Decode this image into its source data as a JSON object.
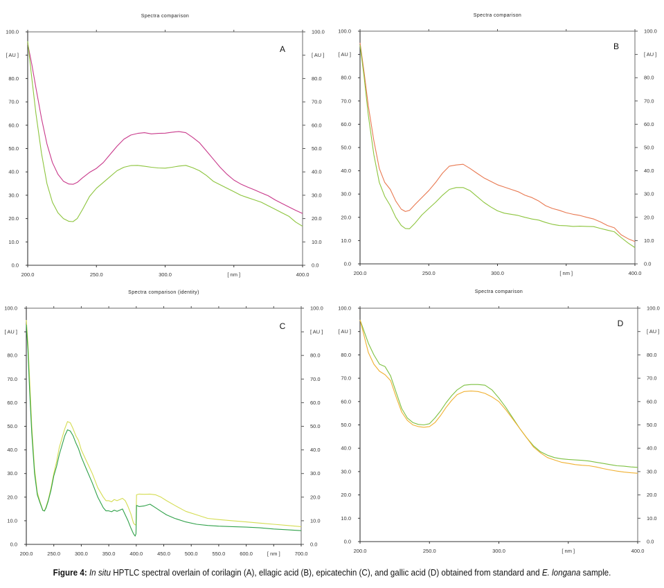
{
  "figure": {
    "caption": {
      "label": "Figure 4:",
      "italic_1": "In situ",
      "text_1": " HPTLC spectral overlain of corilagin (A), ellagic acid (B), epicatechin (C), and gallic acid (D) obtained from standard and ",
      "italic_2": "E. longana",
      "text_2": " sample."
    }
  },
  "chart_data": [
    {
      "id": "A",
      "type": "line",
      "panel_letter": "A",
      "title": "Spectra comparison",
      "xlabel": "[ nm ]",
      "ylabel": "[ AU ]",
      "ylabel_right": "[ AU ]",
      "xlim": [
        200,
        400
      ],
      "ylim": [
        0,
        100
      ],
      "x_ticks": [
        200,
        250,
        300,
        350,
        400
      ],
      "x_tick_labels": [
        "200.0",
        "250.0",
        "300.0",
        "[ nm ]",
        "400.0"
      ],
      "y_ticks": [
        0,
        10,
        20,
        30,
        40,
        50,
        60,
        70,
        80,
        90,
        100
      ],
      "y_tick_labels": [
        "0.0",
        "10.0",
        "20.0",
        "30.0",
        "40.0",
        "50.0",
        "60.0",
        "70.0",
        "80.0",
        "[ AU ]",
        "100.0"
      ],
      "grid": false,
      "series": [
        {
          "name": "standard",
          "color": "#c8388a",
          "x": [
            200,
            203,
            206,
            210,
            214,
            218,
            222,
            226,
            230,
            233,
            236,
            240,
            245,
            250,
            255,
            260,
            265,
            270,
            275,
            280,
            285,
            290,
            295,
            300,
            305,
            310,
            315,
            320,
            325,
            330,
            335,
            340,
            345,
            350,
            355,
            360,
            365,
            370,
            375,
            380,
            385,
            390,
            395,
            400
          ],
          "y": [
            95,
            86,
            76,
            63,
            52,
            44,
            39,
            36,
            34.8,
            34.7,
            35.5,
            37.5,
            39.8,
            41.5,
            44,
            47.5,
            51,
            54,
            55.8,
            56.5,
            56.8,
            56.3,
            56.5,
            56.6,
            57,
            57.3,
            56.8,
            54.8,
            52.5,
            49,
            45.5,
            42,
            39,
            36.5,
            34.8,
            33.5,
            32.3,
            31,
            29.8,
            28,
            26.5,
            25,
            23.5,
            22.2
          ]
        },
        {
          "name": "sample",
          "color": "#8cc43c",
          "x": [
            200,
            203,
            206,
            210,
            214,
            218,
            222,
            226,
            230,
            233,
            236,
            240,
            245,
            250,
            255,
            260,
            265,
            270,
            275,
            280,
            285,
            290,
            295,
            300,
            305,
            310,
            315,
            320,
            325,
            330,
            335,
            340,
            345,
            350,
            355,
            360,
            365,
            370,
            375,
            380,
            385,
            390,
            395,
            400
          ],
          "y": [
            96,
            80,
            65,
            48,
            35,
            27,
            22.5,
            20,
            18.8,
            18.7,
            20,
            24,
            29.5,
            33,
            35.5,
            38,
            40.5,
            42,
            42.7,
            42.8,
            42.4,
            42,
            41.7,
            41.6,
            42,
            42.5,
            42.8,
            41.8,
            40.5,
            38.5,
            36,
            34.5,
            33,
            31.5,
            30,
            29,
            28,
            27,
            25.5,
            24,
            22.5,
            21,
            18.5,
            16.7
          ]
        }
      ]
    },
    {
      "id": "B",
      "type": "line",
      "panel_letter": "B",
      "title": "Spectra comparison",
      "xlabel": "[ nm ]",
      "ylabel": "[ AU ]",
      "ylabel_right": "[ AU ]",
      "xlim": [
        200,
        400
      ],
      "ylim": [
        0,
        100
      ],
      "x_ticks": [
        200,
        250,
        300,
        350,
        400
      ],
      "x_tick_labels": [
        "200.0",
        "250.0",
        "300.0",
        "[ nm ]",
        "400.0"
      ],
      "y_ticks": [
        0,
        10,
        20,
        30,
        40,
        50,
        60,
        70,
        80,
        90,
        100
      ],
      "y_tick_labels": [
        "0.0",
        "10.0",
        "20.0",
        "30.0",
        "40.0",
        "50.0",
        "60.0",
        "70.0",
        "80.0",
        "[ AU ]",
        "100.0"
      ],
      "grid": false,
      "series": [
        {
          "name": "standard",
          "color": "#e87850",
          "x": [
            200,
            203,
            206,
            210,
            214,
            218,
            222,
            226,
            230,
            233,
            236,
            240,
            245,
            250,
            255,
            260,
            265,
            270,
            275,
            280,
            285,
            290,
            295,
            300,
            305,
            310,
            315,
            320,
            325,
            330,
            335,
            340,
            345,
            350,
            355,
            360,
            365,
            370,
            375,
            380,
            385,
            390,
            395,
            400
          ],
          "y": [
            95,
            82,
            68,
            53,
            41,
            35,
            32,
            27,
            23.5,
            22.5,
            23,
            25.5,
            28.5,
            31.5,
            35,
            39,
            42,
            42.5,
            42.8,
            41,
            39,
            37,
            35.5,
            34,
            33,
            32,
            31,
            29.5,
            28.5,
            27,
            25,
            23.8,
            23,
            22,
            21.3,
            20.8,
            20,
            19.3,
            18,
            16.5,
            15.5,
            12.5,
            10.8,
            9.6
          ]
        },
        {
          "name": "sample",
          "color": "#8cc43c",
          "x": [
            200,
            203,
            206,
            210,
            214,
            218,
            222,
            226,
            230,
            233,
            236,
            240,
            245,
            250,
            255,
            260,
            265,
            270,
            275,
            280,
            285,
            290,
            295,
            300,
            305,
            310,
            315,
            320,
            325,
            330,
            335,
            340,
            345,
            350,
            355,
            360,
            365,
            370,
            375,
            380,
            385,
            390,
            395,
            400
          ],
          "y": [
            94,
            80,
            64,
            47,
            35,
            29,
            25,
            20,
            16.5,
            15.2,
            15.1,
            17.5,
            21,
            23.8,
            26.5,
            29.5,
            32,
            32.8,
            32.8,
            31.5,
            29,
            26.5,
            24.5,
            22.8,
            21.8,
            21.3,
            20.8,
            20,
            19.3,
            18.8,
            17.8,
            17,
            16.5,
            16.4,
            16.1,
            16.2,
            16.1,
            16,
            15.2,
            14.5,
            13.8,
            11.3,
            9,
            7
          ]
        }
      ]
    },
    {
      "id": "C",
      "type": "line",
      "panel_letter": "C",
      "title": "Spectra comparison (identity)",
      "xlabel": "[ nm ]",
      "ylabel": "[ AU ]",
      "ylabel_right": "[ AU ]",
      "xlim": [
        200,
        700
      ],
      "ylim": [
        0,
        100
      ],
      "x_ticks": [
        200,
        250,
        300,
        350,
        400,
        450,
        500,
        550,
        600,
        650,
        700
      ],
      "x_tick_labels": [
        "200.0",
        "250.0",
        "300.0",
        "350.0",
        "400.0",
        "450.0",
        "500.0",
        "550.0",
        "600.0",
        "[ nm ]",
        "700.0"
      ],
      "y_ticks": [
        0,
        10,
        20,
        30,
        40,
        50,
        60,
        70,
        80,
        90,
        100
      ],
      "y_tick_labels": [
        "0.0",
        "10.0",
        "20.0",
        "30.0",
        "40.0",
        "50.0",
        "60.0",
        "70.0",
        "80.0",
        "[ AU ]",
        "100.0"
      ],
      "grid": false,
      "series": [
        {
          "name": "standard",
          "color": "#d4dc50",
          "x": [
            200,
            203,
            206,
            210,
            215,
            220,
            225,
            230,
            233,
            236,
            240,
            245,
            250,
            255,
            260,
            265,
            270,
            275,
            280,
            285,
            290,
            295,
            300,
            310,
            320,
            330,
            340,
            345,
            350,
            355,
            360,
            365,
            370,
            375,
            380,
            385,
            390,
            395,
            398,
            399.5,
            400.5,
            405,
            415,
            425,
            435,
            445,
            455,
            470,
            490,
            510,
            530,
            550,
            575,
            600,
            625,
            650,
            675,
            700
          ],
          "y": [
            95,
            85,
            70,
            50,
            32,
            22,
            18,
            14.5,
            14.2,
            16,
            19,
            24,
            30,
            35,
            41,
            45,
            49,
            52,
            51.5,
            49,
            46,
            44,
            40,
            35,
            30,
            24,
            20,
            18.5,
            18.5,
            18,
            19,
            18.5,
            19,
            19.5,
            18.5,
            16,
            13,
            9,
            8.2,
            8.5,
            21,
            21.3,
            21.2,
            21.3,
            21,
            20,
            18.5,
            16.5,
            14,
            12.5,
            11,
            10.5,
            10,
            9.5,
            9,
            8.5,
            8,
            7.5
          ]
        },
        {
          "name": "sample",
          "color": "#2ea048",
          "x": [
            200,
            203,
            206,
            210,
            215,
            220,
            225,
            230,
            233,
            236,
            240,
            245,
            250,
            255,
            260,
            265,
            270,
            275,
            280,
            285,
            290,
            295,
            300,
            310,
            320,
            330,
            340,
            345,
            350,
            355,
            360,
            365,
            370,
            375,
            380,
            385,
            390,
            395,
            398,
            399.5,
            400.5,
            405,
            415,
            425,
            435,
            445,
            455,
            470,
            490,
            510,
            530,
            550,
            575,
            600,
            625,
            650,
            675,
            700
          ],
          "y": [
            93,
            82,
            65,
            47,
            30,
            21,
            17.5,
            14.4,
            14.1,
            15.5,
            18.5,
            23,
            29,
            33,
            38,
            42,
            46,
            48.5,
            48,
            46,
            43,
            40.5,
            37,
            31.5,
            26,
            20,
            15.5,
            14.2,
            14.2,
            13.8,
            14.5,
            14,
            14.5,
            15,
            12.5,
            10,
            7,
            4.5,
            3.5,
            4.5,
            16.5,
            16,
            16.3,
            17,
            15.5,
            14,
            12.5,
            11,
            9.5,
            8.5,
            8,
            7.7,
            7.5,
            7.3,
            7,
            6.5,
            6.2,
            5.8
          ]
        }
      ]
    },
    {
      "id": "D",
      "type": "line",
      "panel_letter": "D",
      "title": "Spectra comparison",
      "xlabel": "[ nm ]",
      "ylabel": "[ AU ]",
      "ylabel_right": "[ AU ]",
      "xlim": [
        200,
        400
      ],
      "ylim": [
        0,
        100
      ],
      "x_ticks": [
        200,
        250,
        300,
        350,
        400
      ],
      "x_tick_labels": [
        "200.0",
        "250.0",
        "300.0",
        "[ nm ]",
        "400.0"
      ],
      "y_ticks": [
        0,
        10,
        20,
        30,
        40,
        50,
        60,
        70,
        80,
        90,
        100
      ],
      "y_tick_labels": [
        "0.0",
        "10.0",
        "20.0",
        "30.0",
        "40.0",
        "50.0",
        "60.0",
        "70.0",
        "80.0",
        "[ AU ]",
        "100.0"
      ],
      "grid": false,
      "series": [
        {
          "name": "sample",
          "color": "#7cc040",
          "x": [
            200,
            203,
            206,
            210,
            214,
            218,
            222,
            226,
            230,
            234,
            238,
            242,
            246,
            250,
            254,
            258,
            262,
            266,
            270,
            275,
            280,
            285,
            290,
            295,
            300,
            305,
            310,
            315,
            320,
            325,
            330,
            335,
            340,
            345,
            350,
            355,
            360,
            365,
            370,
            375,
            380,
            385,
            390,
            395,
            400
          ],
          "y": [
            95,
            90,
            85,
            80,
            76,
            75,
            71,
            64,
            57,
            53,
            51,
            50.2,
            50,
            50.5,
            53,
            56,
            59.5,
            62.5,
            65,
            67,
            67.3,
            67.3,
            67,
            65,
            61.5,
            57.5,
            53,
            48.5,
            44.5,
            41,
            38.5,
            37,
            36,
            35.5,
            35.2,
            35,
            34.8,
            34.5,
            34,
            33.5,
            33,
            32.5,
            32.3,
            32,
            31.8
          ]
        },
        {
          "name": "standard",
          "color": "#f0b030",
          "x": [
            200,
            203,
            206,
            210,
            214,
            218,
            222,
            226,
            230,
            234,
            238,
            242,
            246,
            250,
            254,
            258,
            262,
            266,
            270,
            275,
            280,
            285,
            290,
            295,
            300,
            305,
            310,
            315,
            320,
            325,
            330,
            335,
            340,
            345,
            350,
            355,
            360,
            365,
            370,
            375,
            380,
            385,
            390,
            395,
            400
          ],
          "y": [
            95,
            88,
            81,
            76,
            73,
            71.5,
            69,
            62,
            55.5,
            52,
            50,
            49.3,
            49,
            49.3,
            51,
            54,
            57.5,
            60.5,
            63,
            64.3,
            64.5,
            64.3,
            63.5,
            62,
            60,
            56.5,
            52.5,
            48.5,
            44.5,
            40.5,
            38,
            36,
            35,
            34,
            33.5,
            33,
            32.7,
            32.5,
            32,
            31.3,
            30.7,
            30.2,
            29.8,
            29.5,
            29.3
          ]
        }
      ]
    }
  ]
}
